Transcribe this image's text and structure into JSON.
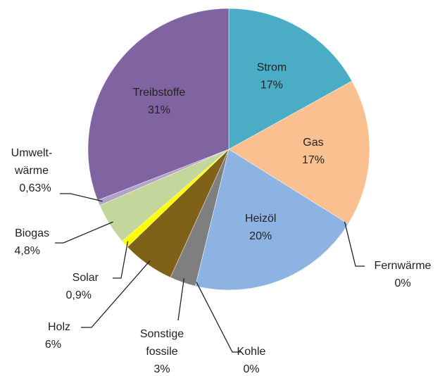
{
  "chart_data": {
    "type": "pie",
    "categories": [
      "Strom",
      "Gas",
      "Fernwärme",
      "Heizöl",
      "Kohle",
      "Sonstige\nfossile",
      "Holz",
      "Solar",
      "Biogas",
      "Umwelt-\nwärme",
      "Treibstoffe"
    ],
    "values": [
      17,
      17,
      0,
      20,
      0,
      3,
      6,
      0.9,
      4.8,
      0.63,
      31
    ],
    "value_labels": [
      "17%",
      "17%",
      "0%",
      "20%",
      "0%",
      "3%",
      "6%",
      "0,9%",
      "4,8%",
      "0,63%",
      "31%"
    ],
    "colors": [
      "#4bacc6",
      "#fac090",
      "#c0504d",
      "#8db3e2",
      "#404040",
      "#7f7f7f",
      "#7f6118",
      "#ffff00",
      "#c3d69b",
      "#b3a2c7",
      "#8064a2"
    ]
  }
}
